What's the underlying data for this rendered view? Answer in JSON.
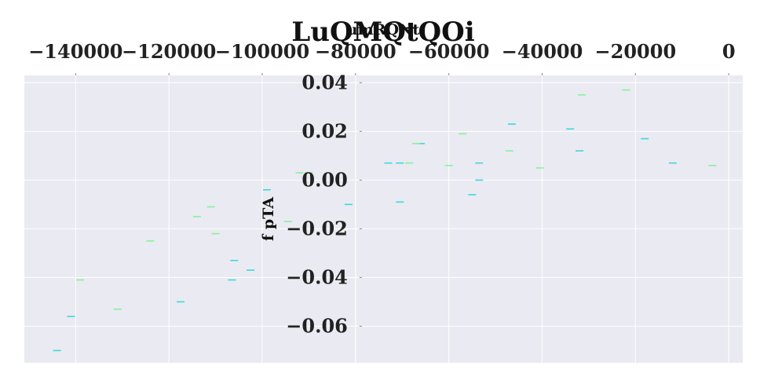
{
  "chart_data": {
    "type": "scatter",
    "marker": "horizontal-dash",
    "title": "LuQMQtQOi",
    "xlabel": "umRQNt",
    "ylabel": "f pTA",
    "xlim": [
      -151000,
      3000
    ],
    "ylim": [
      -0.075,
      0.043
    ],
    "x_axis_position": "top",
    "y_axis_position": "x=-80000",
    "grid": true,
    "legend": "none",
    "x_ticks": [
      -140000,
      -120000,
      -100000,
      -80000,
      -60000,
      -40000,
      -20000,
      0
    ],
    "x_tick_labels": [
      "−140000",
      "−120000",
      "−100000",
      "−80000",
      "−60000",
      "−40000",
      "−20000",
      "0"
    ],
    "y_ticks": [
      0.04,
      0.02,
      0.0,
      -0.02,
      -0.04,
      -0.06
    ],
    "y_tick_labels": [
      "0.04",
      "0.02",
      "0.00",
      "−0.02",
      "−0.04",
      "−0.06"
    ],
    "colors": {
      "background": "#eaeaf2",
      "grid": "#ffffff",
      "series_a": "#3cd8dc",
      "series_b": "#85f29b"
    },
    "series": [
      {
        "color": "#3cd8dc",
        "points": [
          [
            -144000,
            -0.07
          ],
          [
            -141000,
            -0.056
          ],
          [
            -117500,
            -0.05
          ],
          [
            -106500,
            -0.041
          ],
          [
            -106000,
            -0.033
          ],
          [
            -102500,
            -0.037
          ],
          [
            -99000,
            -0.004
          ],
          [
            -81500,
            -0.01
          ],
          [
            -73000,
            0.007
          ],
          [
            -70500,
            0.007
          ],
          [
            -70500,
            -0.009
          ],
          [
            -66000,
            0.015
          ],
          [
            -55000,
            -0.006
          ],
          [
            -53500,
            0.007
          ],
          [
            -53500,
            0.0
          ],
          [
            -46500,
            0.023
          ],
          [
            -34000,
            0.021
          ],
          [
            -32000,
            0.012
          ],
          [
            -18000,
            0.017
          ],
          [
            -12000,
            0.007
          ]
        ]
      },
      {
        "color": "#85f29b",
        "points": [
          [
            -139000,
            -0.041
          ],
          [
            -131000,
            -0.053
          ],
          [
            -124000,
            -0.025
          ],
          [
            -114000,
            -0.015
          ],
          [
            -110000,
            -0.022
          ],
          [
            -111000,
            -0.011
          ],
          [
            -94500,
            -0.017
          ],
          [
            -92000,
            0.003
          ],
          [
            -90000,
            0.003
          ],
          [
            -67000,
            0.015
          ],
          [
            -68500,
            0.007
          ],
          [
            -57000,
            0.019
          ],
          [
            -60000,
            0.006
          ],
          [
            -47000,
            0.012
          ],
          [
            -40500,
            0.005
          ],
          [
            -31500,
            0.035
          ],
          [
            -22000,
            0.037
          ],
          [
            -3500,
            0.006
          ]
        ]
      }
    ]
  }
}
